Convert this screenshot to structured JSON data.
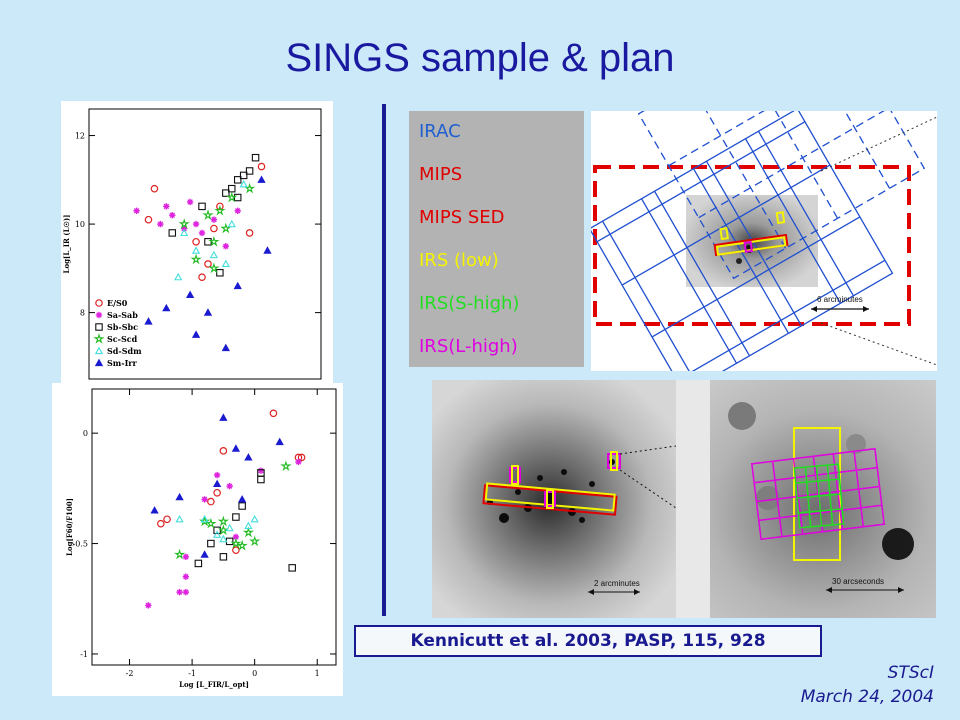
{
  "slide": {
    "title": "SINGS sample & plan",
    "citation": "Kennicutt et al. 2003, PASP, 115, 928",
    "footer_line1": "STScI",
    "footer_line2": "March 24, 2004"
  },
  "legend_box": {
    "items": [
      {
        "label": "IRAC",
        "color": "#1f5fd0"
      },
      {
        "label": "MIPS",
        "color": "#e00000"
      },
      {
        "label": "MIPS SED",
        "color": "#e00000"
      },
      {
        "label": "IRS (low)",
        "color": "#f4f400"
      },
      {
        "label": "IRS(S-high)",
        "color": "#22dd22"
      },
      {
        "label": "IRS(L-high)",
        "color": "#e000e0"
      }
    ]
  },
  "images": {
    "scale_6arcmin": "6 arcminutes",
    "scale_2arcmin": "2 arcminutes",
    "scale_30arcsec": "30 arcseconds"
  },
  "chart_data": [
    {
      "type": "scatter",
      "xlabel": "",
      "ylabel": "Log[L_IR (L☉)]",
      "ylim": [
        6.5,
        12.6
      ],
      "yticks": [
        "12",
        "10",
        "8"
      ],
      "legend_placement": "bottom-left",
      "series": [
        {
          "name": "E/S0",
          "marker": "circle",
          "color": "#dd2222",
          "points": [
            [
              -1.5,
              10.8
            ],
            [
              -1.6,
              10.1
            ],
            [
              0.3,
              11.3
            ],
            [
              0.1,
              9.8
            ],
            [
              -0.4,
              10.4
            ],
            [
              -0.5,
              9.9
            ],
            [
              -0.7,
              8.8
            ],
            [
              -0.6,
              9.1
            ],
            [
              -0.8,
              9.6
            ]
          ]
        },
        {
          "name": "Sa-Sab",
          "marker": "asterisk",
          "color": "#dd22dd",
          "points": [
            [
              -1.8,
              10.3
            ],
            [
              -1.4,
              10.0
            ],
            [
              -1.3,
              10.4
            ],
            [
              -1.0,
              9.9
            ],
            [
              -0.9,
              10.5
            ],
            [
              -0.7,
              9.8
            ],
            [
              -0.5,
              10.1
            ],
            [
              -0.3,
              9.5
            ],
            [
              -0.1,
              10.3
            ],
            [
              -1.2,
              10.2
            ],
            [
              -0.8,
              10.0
            ]
          ]
        },
        {
          "name": "Sb-Sbc",
          "marker": "square",
          "color": "#111111",
          "points": [
            [
              0.2,
              11.5
            ],
            [
              0.0,
              11.1
            ],
            [
              -0.1,
              11.0
            ],
            [
              0.1,
              11.2
            ],
            [
              -0.2,
              10.8
            ],
            [
              -0.1,
              10.6
            ],
            [
              -0.3,
              10.7
            ],
            [
              -0.7,
              10.4
            ],
            [
              -1.2,
              9.8
            ],
            [
              -0.4,
              8.9
            ],
            [
              -0.6,
              9.6
            ]
          ]
        },
        {
          "name": "Sc-Scd",
          "marker": "star",
          "color": "#22bb22",
          "points": [
            [
              -0.5,
              9.6
            ],
            [
              -0.3,
              9.9
            ],
            [
              -0.6,
              10.2
            ],
            [
              -0.8,
              9.2
            ],
            [
              -1.0,
              10.0
            ],
            [
              -0.4,
              10.3
            ],
            [
              -0.2,
              10.6
            ],
            [
              0.1,
              10.8
            ],
            [
              -0.5,
              9.0
            ]
          ]
        },
        {
          "name": "Sd-Sdm",
          "marker": "triangle",
          "color": "#44dddd",
          "points": [
            [
              -1.1,
              8.8
            ],
            [
              -0.8,
              9.4
            ],
            [
              -0.5,
              9.3
            ],
            [
              0.0,
              10.9
            ],
            [
              -0.2,
              10.0
            ],
            [
              -1.0,
              9.8
            ],
            [
              -0.3,
              9.1
            ]
          ]
        },
        {
          "name": "Sm-Irr",
          "marker": "triangle-filled",
          "color": "#1a1ad0",
          "points": [
            [
              -1.6,
              7.8
            ],
            [
              -1.3,
              8.1
            ],
            [
              -0.9,
              8.4
            ],
            [
              -0.8,
              7.5
            ],
            [
              -0.6,
              8.0
            ],
            [
              -0.3,
              7.2
            ],
            [
              0.3,
              11.0
            ],
            [
              0.4,
              9.4
            ],
            [
              -0.1,
              8.6
            ]
          ]
        }
      ]
    },
    {
      "type": "scatter",
      "xlabel": "Log [L_FIR/L_opt]",
      "ylabel": "Log[F60/F100]",
      "xlim": [
        -2.6,
        1.3
      ],
      "ylim": [
        -1.05,
        0.2
      ],
      "xticks": [
        "-2",
        "-1",
        "0",
        "1"
      ],
      "yticks": [
        "0",
        "-0.5",
        "-1"
      ],
      "series": [
        {
          "name": "E/S0",
          "marker": "circle",
          "color": "#dd2222",
          "points": [
            [
              -1.5,
              -0.41
            ],
            [
              -1.4,
              -0.39
            ],
            [
              0.3,
              0.09
            ],
            [
              0.7,
              -0.11
            ],
            [
              0.75,
              -0.11
            ],
            [
              -0.5,
              -0.08
            ],
            [
              -0.6,
              -0.27
            ],
            [
              -0.7,
              -0.31
            ],
            [
              -0.3,
              -0.53
            ]
          ]
        },
        {
          "name": "Sa-Sab",
          "marker": "asterisk",
          "color": "#dd22dd",
          "points": [
            [
              -1.7,
              -0.78
            ],
            [
              -1.2,
              -0.72
            ],
            [
              -1.1,
              -0.72
            ],
            [
              -1.1,
              -0.65
            ],
            [
              -1.1,
              -0.56
            ],
            [
              -0.6,
              -0.19
            ],
            [
              -0.4,
              -0.24
            ],
            [
              0.1,
              -0.17
            ],
            [
              0.7,
              -0.13
            ],
            [
              -0.8,
              -0.3
            ],
            [
              -0.3,
              -0.47
            ]
          ]
        },
        {
          "name": "Sb-Sbc",
          "marker": "square",
          "color": "#111111",
          "points": [
            [
              0.6,
              -0.61
            ],
            [
              -0.9,
              -0.59
            ],
            [
              -0.5,
              -0.56
            ],
            [
              -0.7,
              -0.5
            ],
            [
              -0.6,
              -0.44
            ],
            [
              -0.3,
              -0.38
            ],
            [
              -0.2,
              -0.33
            ],
            [
              0.1,
              -0.21
            ],
            [
              0.1,
              -0.18
            ],
            [
              -0.4,
              -0.49
            ]
          ]
        },
        {
          "name": "Sc-Scd",
          "marker": "star",
          "color": "#22bb22",
          "points": [
            [
              -1.2,
              -0.55
            ],
            [
              -0.7,
              -0.41
            ],
            [
              -0.5,
              -0.44
            ],
            [
              -0.3,
              -0.5
            ],
            [
              -0.2,
              -0.51
            ],
            [
              0.0,
              -0.49
            ],
            [
              -0.1,
              -0.45
            ],
            [
              -0.5,
              -0.4
            ],
            [
              0.5,
              -0.15
            ],
            [
              -0.8,
              -0.4
            ]
          ]
        },
        {
          "name": "Sd-Sdm",
          "marker": "triangle",
          "color": "#44dddd",
          "points": [
            [
              -1.2,
              -0.39
            ],
            [
              -0.8,
              -0.39
            ],
            [
              -0.6,
              -0.46
            ],
            [
              -0.4,
              -0.43
            ],
            [
              -0.1,
              -0.42
            ],
            [
              0.0,
              -0.39
            ],
            [
              -0.5,
              -0.48
            ]
          ]
        },
        {
          "name": "Sm-Irr",
          "marker": "triangle-filled",
          "color": "#1a1ad0",
          "points": [
            [
              -1.6,
              -0.35
            ],
            [
              -1.2,
              -0.29
            ],
            [
              -0.6,
              -0.23
            ],
            [
              -0.3,
              -0.07
            ],
            [
              -0.1,
              -0.11
            ],
            [
              0.4,
              -0.04
            ],
            [
              -0.5,
              0.07
            ],
            [
              -0.2,
              -0.3
            ],
            [
              -0.8,
              -0.55
            ]
          ]
        }
      ]
    }
  ]
}
